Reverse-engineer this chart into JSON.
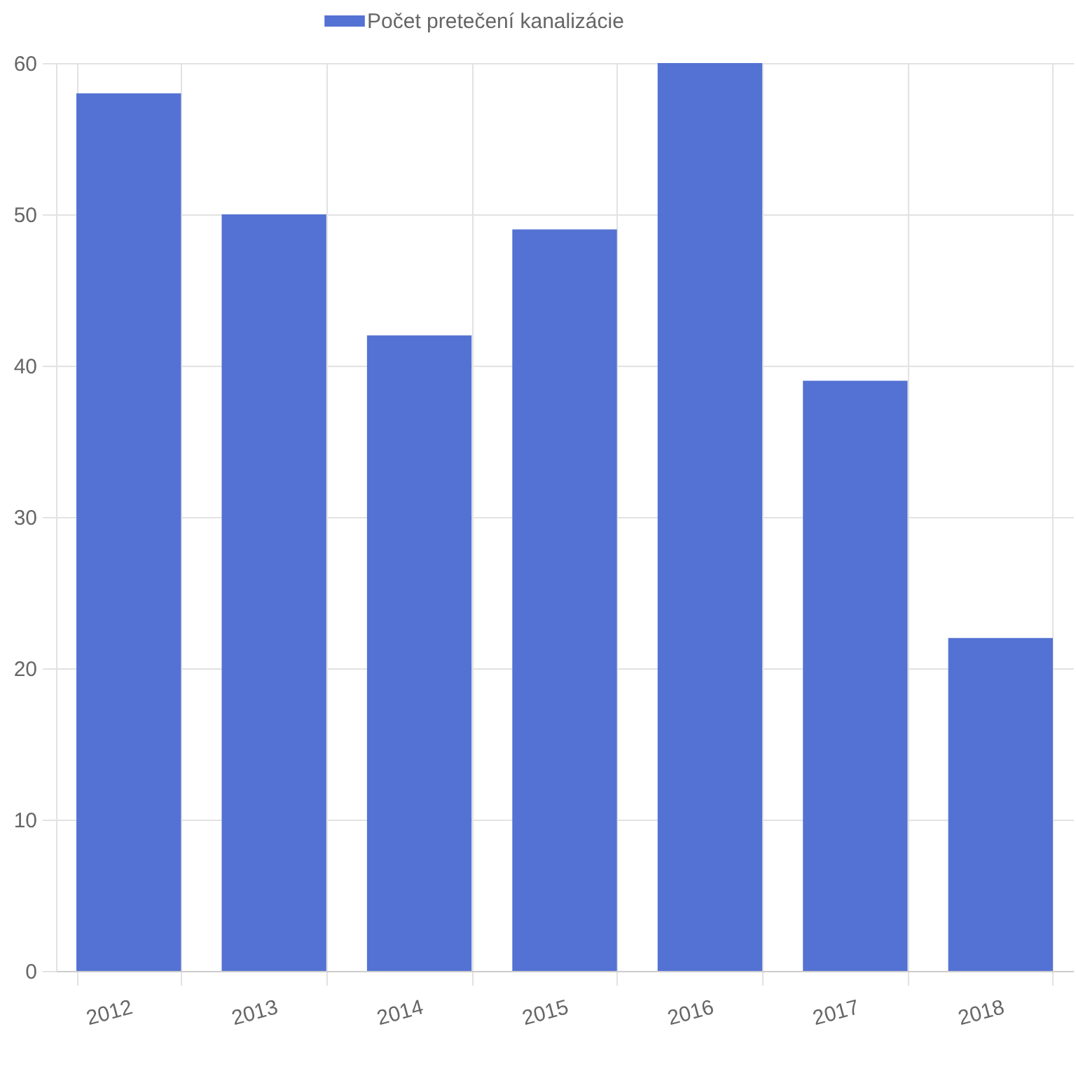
{
  "chart_data": {
    "type": "bar",
    "categories": [
      "2012",
      "2013",
      "2014",
      "2015",
      "2016",
      "2017",
      "2018"
    ],
    "series": [
      {
        "name": "Počet pretečení kanalizácie",
        "color": "#5472d3",
        "values": [
          58,
          50,
          42,
          49,
          60,
          39,
          22
        ]
      }
    ],
    "ylim": [
      0,
      60
    ],
    "yticks": [
      0,
      10,
      20,
      30,
      40,
      50,
      60
    ],
    "grid": true,
    "legend": "top"
  }
}
